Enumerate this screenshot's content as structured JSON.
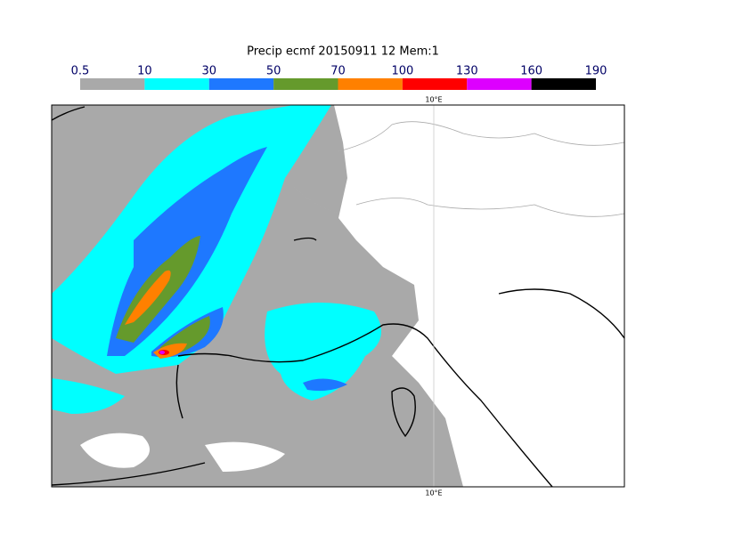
{
  "title": "Precip ecmf 20150911 12 Mem:1",
  "colorbar": {
    "boundaries": [
      0.5,
      10,
      30,
      50,
      70,
      100,
      130,
      160,
      190
    ],
    "colors": [
      "#a9a9a9",
      "#00ffff",
      "#1e78ff",
      "#659a2c",
      "#ff8000",
      "#ff0000",
      "#dd00ff",
      "#000000"
    ]
  },
  "map": {
    "lon_label_top": "10°E",
    "lon_label_bottom": "10°E"
  }
}
